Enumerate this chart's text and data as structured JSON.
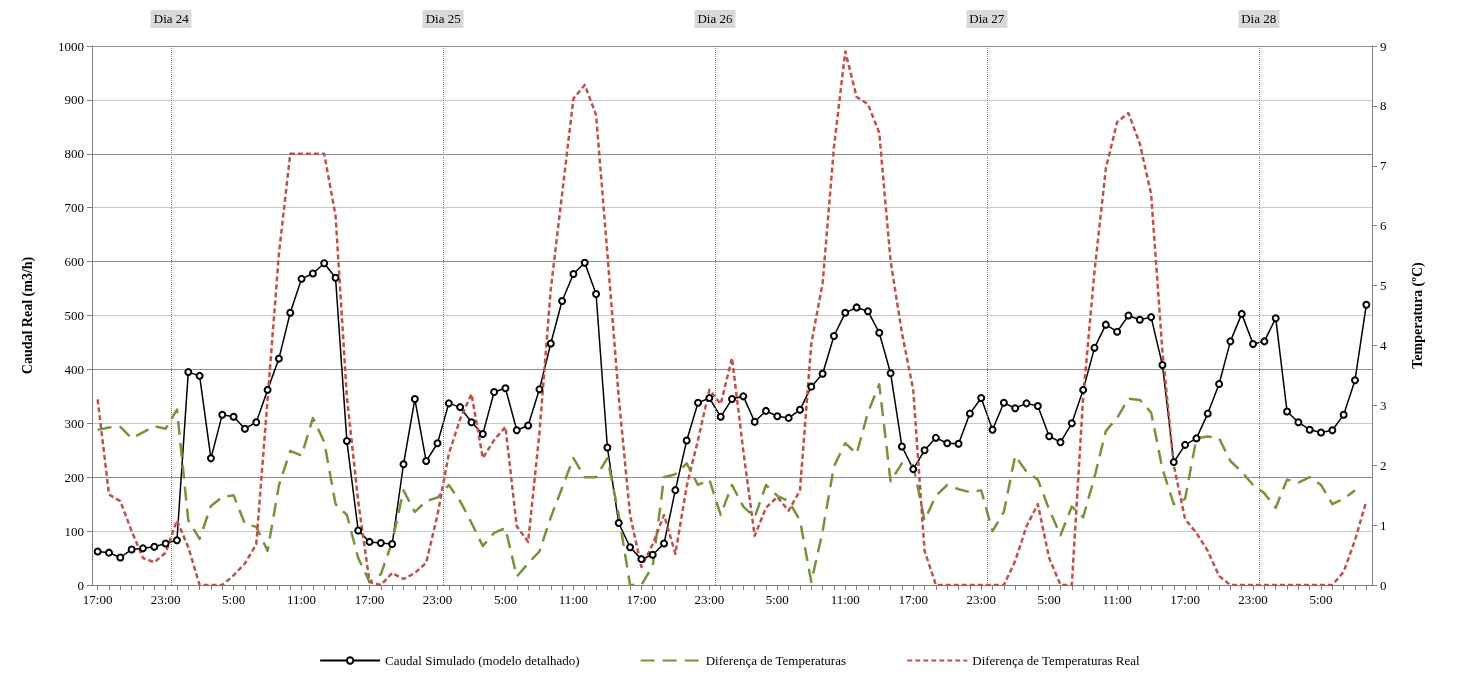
{
  "chart_data": {
    "type": "line",
    "ylabel": "Caudal Real (m3/h)",
    "y2label": "Temperatura (ºC)",
    "categories": [
      "17:00",
      null,
      null,
      null,
      null,
      null,
      "23:00",
      null,
      null,
      null,
      null,
      null,
      "5:00",
      null,
      null,
      null,
      null,
      null,
      "11:00",
      null,
      null,
      null,
      null,
      null,
      "17:00",
      null,
      null,
      null,
      null,
      null,
      "23:00",
      null,
      null,
      null,
      null,
      null,
      "5:00",
      null,
      null,
      null,
      null,
      null,
      "11:00",
      null,
      null,
      null,
      null,
      null,
      "17:00",
      null,
      null,
      null,
      null,
      null,
      "23:00",
      null,
      null,
      null,
      null,
      null,
      "5:00",
      null,
      null,
      null,
      null,
      null,
      "11:00",
      null,
      null,
      null,
      null,
      null,
      "17:00",
      null,
      null,
      null,
      null,
      null,
      "23:00",
      null,
      null,
      null,
      null,
      null,
      "5:00",
      null,
      null,
      null,
      null,
      null,
      "11:00",
      null,
      null,
      null,
      null,
      null,
      "17:00",
      null,
      null,
      null,
      null,
      null,
      "23:00",
      null,
      null,
      null,
      null,
      null,
      "5:00",
      null,
      null,
      null,
      null
    ],
    "ylim": [
      0,
      1000
    ],
    "yticks": [
      0,
      100,
      200,
      300,
      400,
      500,
      600,
      700,
      800,
      900,
      1000
    ],
    "y2lim": [
      0,
      9
    ],
    "y2ticks": [
      0,
      1,
      2,
      3,
      4,
      5,
      6,
      7,
      8,
      9
    ],
    "grid": "y",
    "legend": "bottom",
    "annotations": [
      "Dia 24",
      "Dia 25",
      "Dia 26",
      "Dia 27",
      "Dia 28"
    ],
    "series": [
      {
        "name": "Caudal Simulado (modelo detalhado)",
        "color": "#000000",
        "marker": "circle",
        "line_style": "solid",
        "values": [
          62,
          60,
          51,
          66,
          68,
          71,
          77,
          83,
          395,
          388,
          235,
          316,
          312,
          290,
          302,
          362,
          420,
          505,
          568,
          578,
          597,
          570,
          267,
          101,
          80,
          78,
          76,
          224,
          345,
          230,
          263,
          337,
          330,
          302,
          280,
          358,
          365,
          287,
          296,
          363,
          448,
          527,
          577,
          598,
          540,
          255,
          115,
          70,
          48,
          56,
          77,
          176,
          268,
          338,
          347,
          312,
          345,
          350,
          303,
          323,
          313,
          310,
          325,
          368,
          392,
          462,
          505,
          515,
          508,
          468,
          393,
          257,
          215,
          250,
          273,
          263,
          262,
          318,
          347,
          288,
          338,
          328,
          337,
          332,
          276,
          265,
          300,
          362,
          440,
          483,
          470,
          500,
          492,
          497,
          408,
          228,
          260,
          272,
          318,
          373,
          452,
          503,
          447,
          452,
          495,
          322,
          302,
          288,
          283,
          287,
          316,
          380,
          520
        ]
      },
      {
        "name": "Diferença de Temperaturas",
        "color": "#77933c",
        "marker": "none",
        "line_style": "dashed",
        "axis": "y2",
        "values": [
          2.59,
          2.63,
          2.64,
          2.45,
          2.55,
          2.65,
          2.61,
          2.93,
          1.08,
          0.77,
          1.32,
          1.47,
          1.5,
          1.02,
          0.97,
          0.57,
          1.66,
          2.24,
          2.16,
          2.79,
          2.39,
          1.35,
          1.17,
          0.45,
          0.05,
          0.18,
          0.72,
          1.58,
          1.22,
          1.4,
          1.46,
          1.67,
          1.4,
          1.04,
          0.65,
          0.87,
          0.95,
          0.14,
          0.36,
          0.56,
          1.13,
          1.62,
          2.12,
          1.8,
          1.8,
          2.12,
          1.17,
          0,
          0,
          0.32,
          1.8,
          1.85,
          2.03,
          1.67,
          1.76,
          1.17,
          1.67,
          1.31,
          1.13,
          1.67,
          1.49,
          1.4,
          1.08,
          0.05,
          0.9,
          1.98,
          2.37,
          2.19,
          2.88,
          3.35,
          1.73,
          2.03,
          2,
          1.08,
          1.49,
          1.67,
          1.6,
          1.55,
          1.58,
          0.9,
          1.22,
          2.16,
          1.89,
          1.76,
          1.26,
          0.83,
          1.31,
          1.13,
          1.8,
          2.57,
          2.79,
          3.11,
          3.09,
          2.88,
          1.94,
          1.35,
          1.44,
          2.45,
          2.48,
          2.45,
          2.07,
          1.89,
          1.67,
          1.53,
          1.29,
          1.76,
          1.71,
          1.8,
          1.67,
          1.35,
          1.44,
          1.58,
          null
        ]
      },
      {
        "name": "Diferença de Temperaturas Real",
        "color": "#c0504d",
        "marker": "none",
        "line_style": "dotted",
        "axis": "y2",
        "values": [
          3.1,
          1.51,
          1.4,
          0.9,
          0.45,
          0.38,
          0.54,
          1.08,
          0.63,
          0,
          0,
          0,
          0.16,
          0.36,
          0.68,
          3.1,
          5.53,
          7.2,
          7.2,
          7.2,
          7.2,
          6.17,
          3.14,
          1.4,
          0.05,
          0,
          0.2,
          0.1,
          0.2,
          0.37,
          1.17,
          2.19,
          2.77,
          3.19,
          2.12,
          2.42,
          2.64,
          0.98,
          0.72,
          2.54,
          4.93,
          6.53,
          8.12,
          8.35,
          7.85,
          5.53,
          3.14,
          1.17,
          0.3,
          0.68,
          1.17,
          0.52,
          1.65,
          2.42,
          3.26,
          3.02,
          3.79,
          2.24,
          0.82,
          1.29,
          1.47,
          1.24,
          1.58,
          4.03,
          5.04,
          7.31,
          8.91,
          8.15,
          8.03,
          7.55,
          5.41,
          4.21,
          3.26,
          0.57,
          0,
          0,
          0,
          0,
          0,
          0,
          0,
          0.4,
          0.98,
          1.35,
          0.45,
          0,
          0,
          3.14,
          5.23,
          6.95,
          7.73,
          7.88,
          7.37,
          6.53,
          3.9,
          2,
          1.1,
          0.87,
          0.57,
          0.15,
          0,
          0,
          0,
          0,
          0,
          0,
          0,
          0,
          0,
          0,
          0.22,
          0.75,
          1.4
        ]
      }
    ]
  }
}
